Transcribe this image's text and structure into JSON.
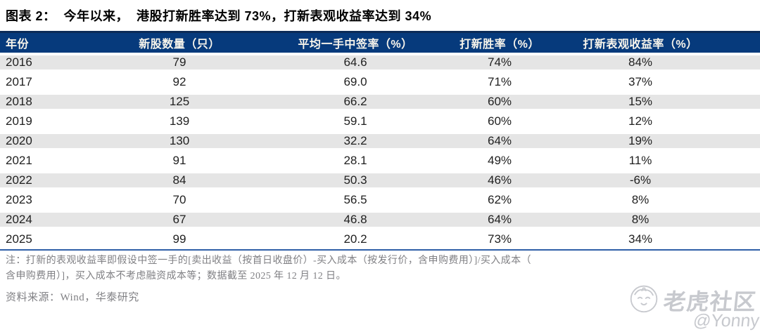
{
  "figure": {
    "title": "图表 2：  今年以来，  港股打新胜率达到 73%，打新表观收益率达到 34%"
  },
  "chart_data": {
    "type": "table",
    "figure_label": "图表 2",
    "title": "今年以来，港股打新胜率达到 73%，打新表观收益率达到 34%",
    "columns": [
      "年份",
      "新股数量（只）",
      "平均一手中签率（%）",
      "打新胜率（%）",
      "打新表观收益率（%）"
    ],
    "rows": [
      [
        "2016",
        "79",
        "64.6",
        "74%",
        "84%"
      ],
      [
        "2017",
        "92",
        "69.0",
        "71%",
        "37%"
      ],
      [
        "2018",
        "125",
        "66.2",
        "60%",
        "15%"
      ],
      [
        "2019",
        "139",
        "59.1",
        "60%",
        "12%"
      ],
      [
        "2020",
        "130",
        "32.2",
        "64%",
        "19%"
      ],
      [
        "2021",
        "91",
        "28.1",
        "49%",
        "11%"
      ],
      [
        "2022",
        "84",
        "50.3",
        "46%",
        "-6%"
      ],
      [
        "2023",
        "70",
        "56.5",
        "62%",
        "8%"
      ],
      [
        "2024",
        "67",
        "46.8",
        "64%",
        "8%"
      ],
      [
        "2025",
        "99",
        "20.2",
        "73%",
        "34%"
      ]
    ]
  },
  "notes": {
    "line1": "注：打新的表观收益率即假设中签一手的[卖出收益（按首日收盘价）-买入成本（按发行价，含申购费用）]/买入成本（",
    "line2": "含申购费用）]，买入成本不考虑融资成本等；数据截至 2025 年 12 月 12 日。",
    "source": "资料来源：Wind，华泰研究"
  },
  "watermark": {
    "community": "老虎社区",
    "user": "@Yonny"
  },
  "colors": {
    "header_bg": "#063a7c",
    "header_top_border": "#0b2b57",
    "header_text": "#f8f5ec",
    "row_alt_bg": "#e5e5e5",
    "bottom_rule": "#2f5fa7",
    "note_text": "#808084",
    "watermark": "#c7c9ce"
  }
}
